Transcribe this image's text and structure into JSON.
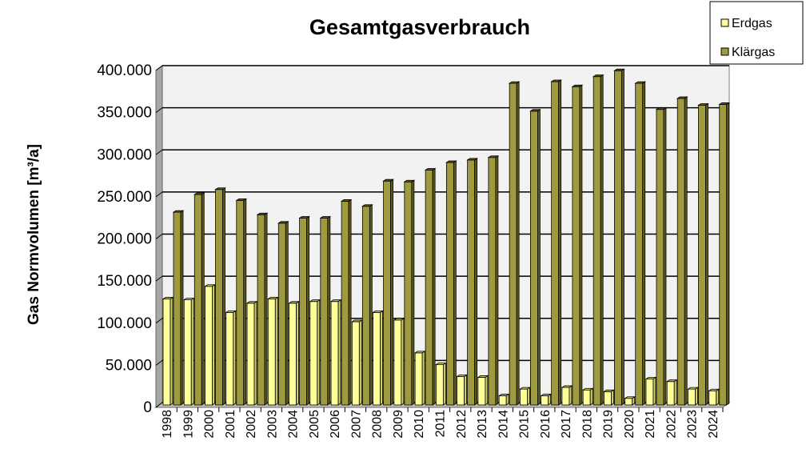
{
  "chart_data": {
    "type": "bar",
    "title": "Gesamtgasverbrauch",
    "xlabel": "",
    "ylabel": "Gas Normvolumen [m³/a]",
    "ylim": [
      0,
      400000
    ],
    "yticks": [
      0,
      50000,
      100000,
      150000,
      200000,
      250000,
      300000,
      350000,
      400000
    ],
    "ytick_labels": [
      "0",
      "50.000",
      "100.000",
      "150.000",
      "200.000",
      "250.000",
      "300.000",
      "350.000",
      "400.000"
    ],
    "grid": true,
    "legend_position": "top-right",
    "categories": [
      "1998",
      "1999",
      "2000",
      "2001",
      "2002",
      "2003",
      "2004",
      "2005",
      "2006",
      "2007",
      "2008",
      "2009",
      "2010",
      "2011",
      "2012",
      "2013",
      "2014",
      "2015",
      "2016",
      "2017",
      "2018",
      "2019",
      "2020",
      "2021",
      "2022",
      "2023",
      "2024"
    ],
    "series": [
      {
        "name": "Erdgas",
        "color": "#ffff99",
        "side": "#cccc66",
        "values": [
          123000,
          122000,
          138000,
          107000,
          118000,
          123000,
          118000,
          120000,
          120000,
          96000,
          107000,
          98000,
          59000,
          45000,
          31000,
          30000,
          8000,
          16000,
          8000,
          18000,
          15000,
          13000,
          5000,
          28000,
          25000,
          16000,
          14000
        ]
      },
      {
        "name": "Klärgas",
        "color": "#9f9a40",
        "side": "#5f5c20",
        "values": [
          226000,
          247000,
          253000,
          240000,
          223000,
          213000,
          219000,
          219000,
          239000,
          233000,
          263000,
          262000,
          276000,
          285000,
          288000,
          291000,
          379000,
          346000,
          381000,
          375000,
          387000,
          394000,
          379000,
          348000,
          361000,
          353000,
          354000
        ]
      }
    ]
  }
}
